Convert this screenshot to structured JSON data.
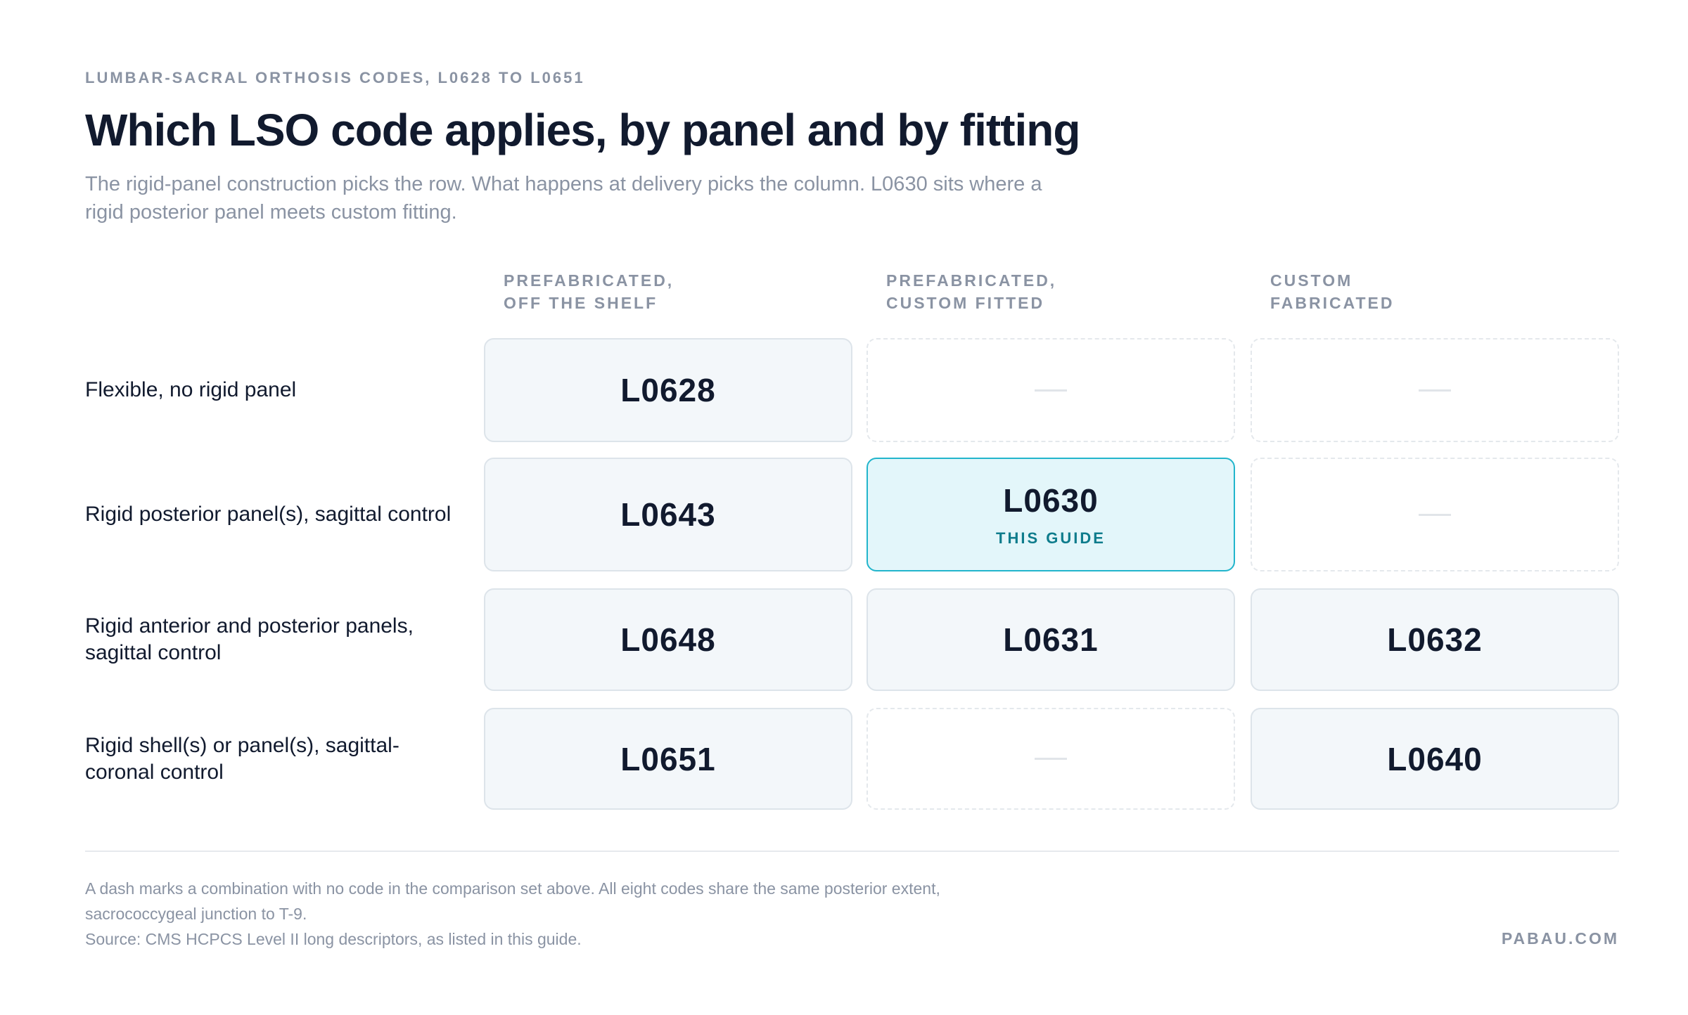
{
  "header": {
    "eyebrow": "LUMBAR-SACRAL ORTHOSIS CODES, L0628 TO L0651",
    "title": "Which LSO code applies, by panel and by fitting",
    "subtitle": "The rigid-panel construction picks the row. What happens at delivery picks the column. L0630 sits where a rigid posterior panel meets custom fitting."
  },
  "table": {
    "columns": [
      [
        "PREFABRICATED,",
        "OFF THE SHELF"
      ],
      [
        "PREFABRICATED,",
        "CUSTOM FITTED"
      ],
      [
        "CUSTOM",
        "FABRICATED"
      ]
    ],
    "rows": [
      {
        "label": "Flexible, no rigid panel",
        "cells": [
          {
            "code": "L0628"
          },
          null,
          null
        ]
      },
      {
        "label": "Rigid posterior panel(s), sagittal control",
        "cells": [
          {
            "code": "L0643"
          },
          {
            "code": "L0630",
            "tag": "THIS GUIDE"
          },
          null
        ]
      },
      {
        "label": "Rigid anterior and posterior panels, sagittal control",
        "cells": [
          {
            "code": "L0648"
          },
          {
            "code": "L0631"
          },
          {
            "code": "L0632"
          }
        ]
      },
      {
        "label": "Rigid shell(s) or panel(s), sagittal-coronal control",
        "cells": [
          {
            "code": "L0651"
          },
          null,
          {
            "code": "L0640"
          }
        ]
      }
    ]
  },
  "footer": {
    "note": "A dash marks a combination with no code in the comparison set above. All eight codes share the same posterior extent, sacrococcygeal junction to T-9.",
    "source": "Source: CMS HCPCS Level II long descriptors, as listed in this guide.",
    "brand": "PABAU.COM"
  }
}
